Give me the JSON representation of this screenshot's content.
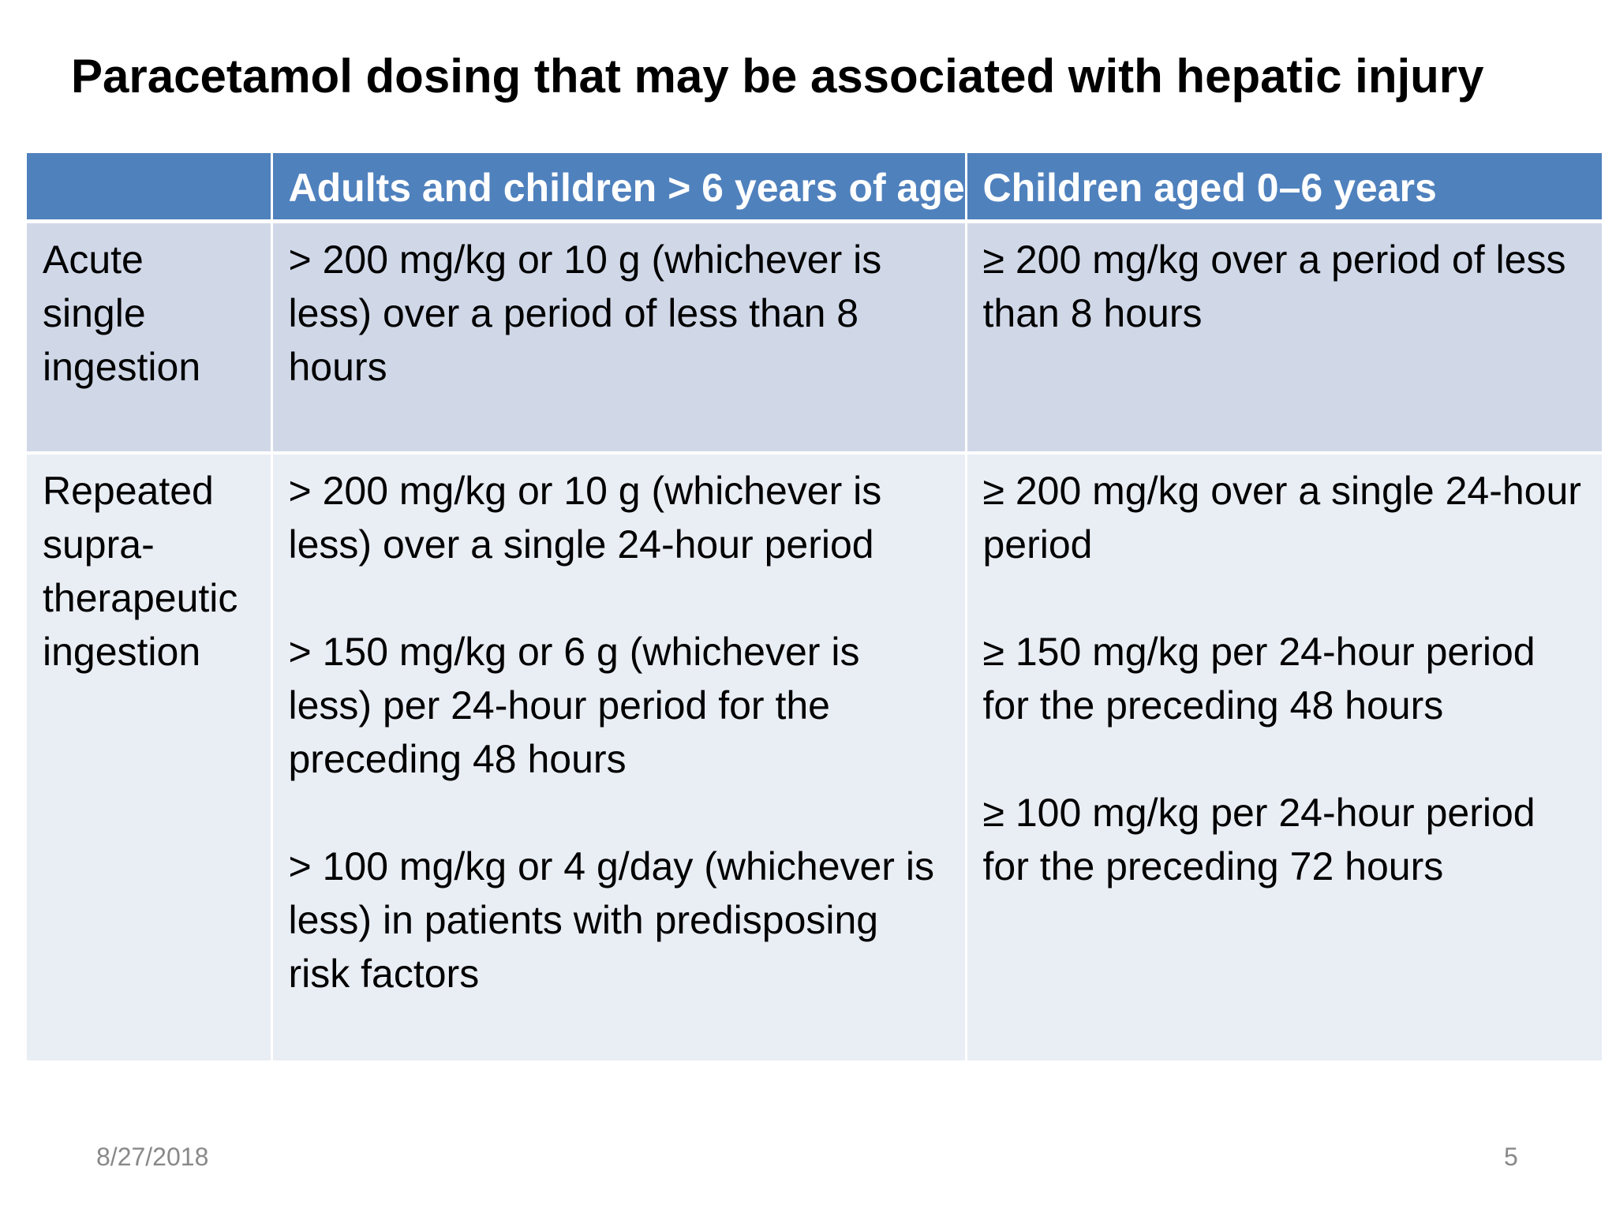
{
  "slide": {
    "title": "Paracetamol dosing that may be associated with hepatic injury",
    "date": "8/27/2018",
    "page_number": "5"
  },
  "table": {
    "headers": [
      "",
      "Adults and children > 6 years of age",
      "Children aged 0–6 years"
    ],
    "rows": [
      {
        "label": "Acute single ingestion",
        "adults": [
          "> 200 mg/kg or 10 g (whichever is less) over a period of less than 8 hours"
        ],
        "children": [
          "≥ 200 mg/kg over a period of less than 8 hours"
        ]
      },
      {
        "label": "Repeated supra-therapeutic ingestion",
        "adults": [
          "> 200 mg/kg or 10 g (whichever is less) over a single 24-hour period",
          "> 150 mg/kg or 6 g (whichever is less) per 24-hour period for the preceding 48 hours",
          "> 100 mg/kg or 4 g/day (whichever is less) in patients with predisposing risk factors"
        ],
        "children": [
          "≥ 200 mg/kg over a single 24-hour period",
          "≥ 150 mg/kg per 24-hour period for the preceding 48 hours",
          "≥ 100 mg/kg per 24-hour period for the preceding 72 hours"
        ]
      }
    ]
  },
  "colors": {
    "header_bg": "#4f81bd",
    "row1_bg": "#d0d8e8",
    "row2_bg": "#e9edf4",
    "footer_text": "#898989"
  }
}
